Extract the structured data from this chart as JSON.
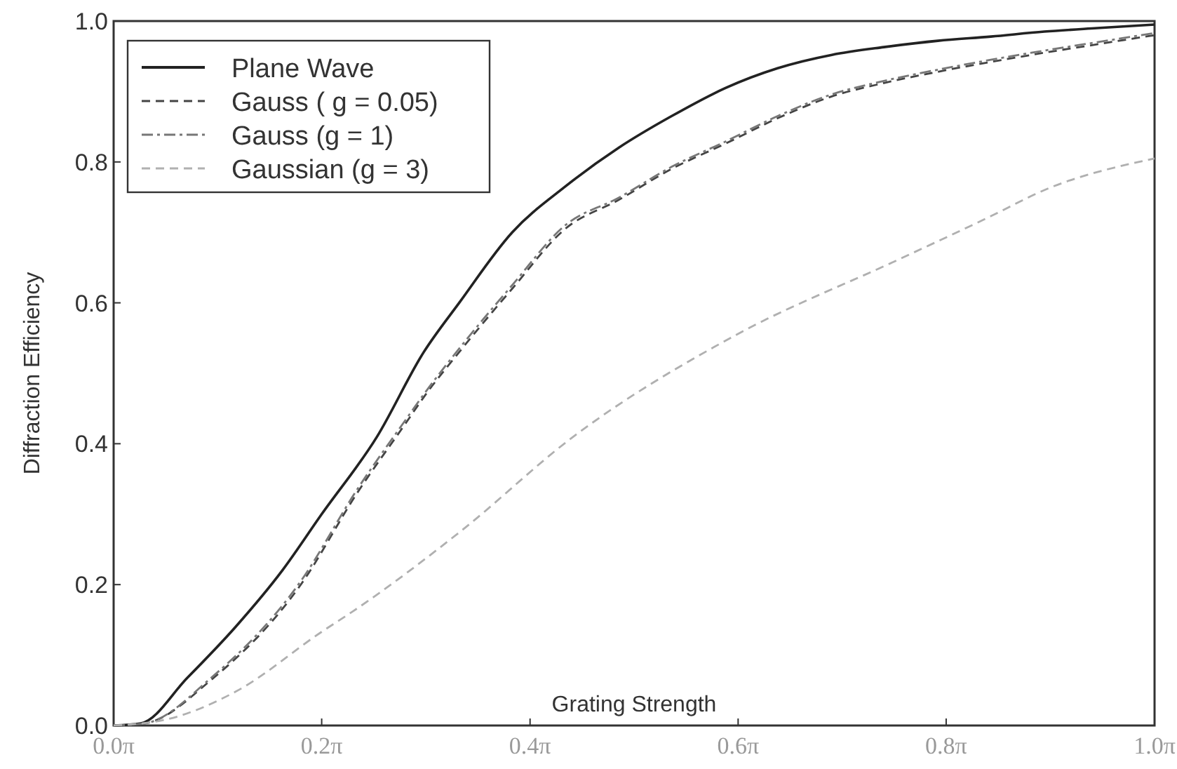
{
  "chart_data": {
    "type": "line",
    "xlabel": "Grating Strength",
    "ylabel": "Diffraction Efficiency",
    "xlim": [
      0,
      3.142
    ],
    "ylim": [
      0,
      1
    ],
    "xticks": [
      {
        "value": 0,
        "label": "0.0π"
      },
      {
        "value": 0.628,
        "label": "0.2π"
      },
      {
        "value": 1.257,
        "label": "0.4π"
      },
      {
        "value": 1.885,
        "label": "0.6π"
      },
      {
        "value": 2.513,
        "label": "0.8π"
      },
      {
        "value": 3.142,
        "label": "1.0π"
      }
    ],
    "yticks": [
      {
        "value": 0,
        "label": "0.0"
      },
      {
        "value": 0.2,
        "label": "0.2"
      },
      {
        "value": 0.4,
        "label": "0.4"
      },
      {
        "value": 0.6,
        "label": "0.6"
      },
      {
        "value": 0.8,
        "label": "0.8"
      },
      {
        "value": 1,
        "label": "1.0"
      }
    ],
    "grid": false,
    "legend": "top left",
    "marker": "none",
    "series": [
      {
        "name": "Plane Wave",
        "color": "#222222",
        "line_style": "solid",
        "x": [
          0,
          0.082,
          0.223,
          0.368,
          0.509,
          0.628,
          0.795,
          0.936,
          1.043,
          1.203,
          1.363,
          1.524,
          1.684,
          1.847,
          2.004,
          2.168,
          2.325,
          2.488,
          2.648,
          2.809,
          2.969,
          3.142
        ],
        "values": [
          0,
          0.003,
          0.068,
          0.14,
          0.22,
          0.3,
          0.41,
          0.53,
          0.6,
          0.7,
          0.765,
          0.82,
          0.865,
          0.905,
          0.933,
          0.952,
          0.963,
          0.972,
          0.978,
          0.985,
          0.99,
          0.995
        ]
      },
      {
        "name": "Gauss ( g = 0.05)",
        "color": "#444444",
        "line_style": "dashed",
        "x": [
          0,
          0.094,
          0.295,
          0.565,
          0.735,
          0.883,
          0.936,
          1.043,
          1.203,
          1.363,
          1.524,
          1.684,
          1.847,
          2.004,
          2.168,
          2.325,
          2.488,
          2.648,
          2.809,
          2.969,
          3.142
        ],
        "values": [
          0,
          0.003,
          0.065,
          0.2,
          0.33,
          0.43,
          0.466,
          0.53,
          0.62,
          0.705,
          0.746,
          0.79,
          0.826,
          0.862,
          0.893,
          0.912,
          0.928,
          0.942,
          0.955,
          0.967,
          0.98
        ]
      },
      {
        "name": "Gauss (g = 1)",
        "color": "#777777",
        "line_style": "dashdot",
        "x": [
          0,
          0.094,
          0.295,
          0.565,
          0.735,
          0.883,
          0.936,
          1.043,
          1.203,
          1.363,
          1.524,
          1.684,
          1.847,
          2.004,
          2.168,
          2.325,
          2.488,
          2.648,
          2.809,
          2.969,
          3.142
        ],
        "values": [
          0,
          0.003,
          0.068,
          0.205,
          0.335,
          0.435,
          0.47,
          0.535,
          0.625,
          0.71,
          0.749,
          0.793,
          0.829,
          0.865,
          0.896,
          0.915,
          0.931,
          0.945,
          0.958,
          0.97,
          0.983
        ]
      },
      {
        "name": "Gaussian (g = 3)",
        "color": "#b0b0b0",
        "line_style": "dashed",
        "x": [
          0,
          0.154,
          0.368,
          0.628,
          0.722,
          1.051,
          1.382,
          1.877,
          2.372,
          2.648,
          2.809,
          3.142
        ],
        "values": [
          0,
          0.008,
          0.048,
          0.133,
          0.162,
          0.277,
          0.408,
          0.554,
          0.662,
          0.723,
          0.76,
          0.805
        ]
      }
    ]
  }
}
